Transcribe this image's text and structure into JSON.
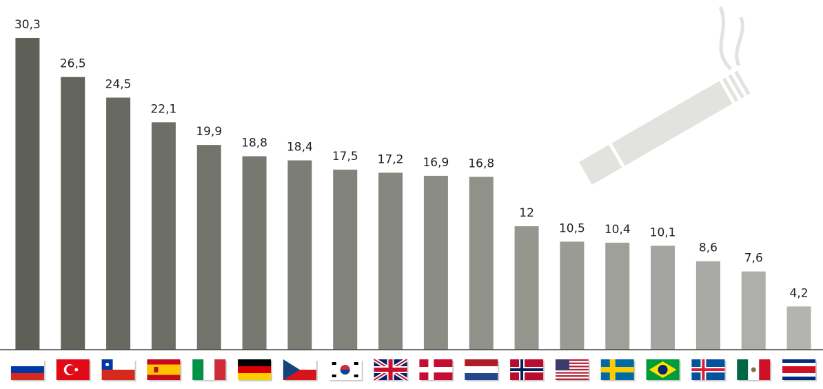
{
  "chart_data": {
    "type": "bar",
    "categories": [
      null,
      null,
      null,
      null,
      null,
      null,
      null,
      null,
      null,
      null,
      null,
      null,
      null,
      null,
      null,
      null,
      null,
      null
    ],
    "values": [
      30.3,
      26.5,
      24.5,
      22.1,
      19.9,
      18.8,
      18.4,
      17.5,
      17.2,
      16.9,
      16.8,
      12,
      10.5,
      10.4,
      10.1,
      8.6,
      7.6,
      4.2
    ],
    "value_labels": [
      "30,3",
      "26,5",
      "24,5",
      "22,1",
      "19,9",
      "18,8",
      "18,4",
      "17,5",
      "17,2",
      "16,9",
      "16,8",
      "12",
      "10,5",
      "10,4",
      "10,1",
      "8,6",
      "7,6",
      "4,2"
    ],
    "colors": [
      "#5e5f56",
      "#63645b",
      "#686960",
      "#6d6e65",
      "#72736a",
      "#77786f",
      "#7c7d74",
      "#818279",
      "#86877e",
      "#8b8c83",
      "#909188",
      "#95968e",
      "#9a9b94",
      "#9fa09a",
      "#a4a5a0",
      "#a9aaa5",
      "#aeaeaa",
      "#b3b3af"
    ]
  }
}
